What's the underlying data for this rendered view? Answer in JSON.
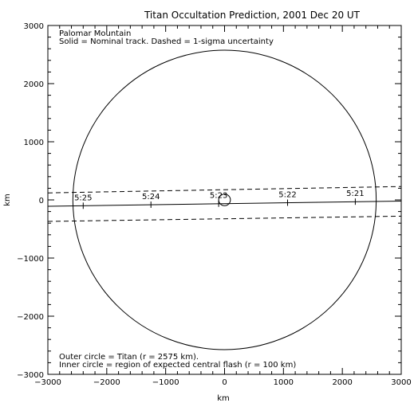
{
  "chart_data": {
    "type": "line",
    "title": "Titan Occultation Prediction, 2001 Dec 20 UT",
    "annotations_top": [
      "Palomar Mountain",
      "Solid = Nominal track.  Dashed = 1-sigma uncertainty"
    ],
    "annotations_bottom": [
      "Outer circle = Titan (r = 2575 km).",
      "Inner circle = region of expected central flash (r = 100 km)"
    ],
    "xlabel": "km",
    "ylabel": "km",
    "xlim": [
      -3000,
      3000
    ],
    "ylim": [
      -3000,
      3000
    ],
    "xticks": [
      -3000,
      -2000,
      -1000,
      0,
      1000,
      2000,
      3000
    ],
    "yticks": [
      -3000,
      -2000,
      -1000,
      0,
      1000,
      2000,
      3000
    ],
    "xtick_labels": [
      "−3000",
      "−2000",
      "−1000",
      "0",
      "1000",
      "2000",
      "3000"
    ],
    "ytick_labels": [
      "−3000",
      "−2000",
      "−1000",
      "0",
      "1000",
      "2000",
      "3000"
    ],
    "circles": [
      {
        "name": "Titan",
        "cx": 0,
        "cy": 0,
        "r": 2575
      },
      {
        "name": "central-flash",
        "cx": 0,
        "cy": 0,
        "r": 100
      }
    ],
    "series": [
      {
        "style": "solid",
        "x": [
          -3000,
          3000
        ],
        "y": [
          -110,
          -20
        ]
      },
      {
        "style": "dashed",
        "x": [
          -3000,
          3000
        ],
        "y": [
          120,
          230
        ]
      },
      {
        "style": "dashed",
        "x": [
          -3000,
          3000
        ],
        "y": [
          -370,
          -280
        ]
      }
    ],
    "time_marks": [
      {
        "label": "5:25",
        "x": -2400,
        "y": -100
      },
      {
        "label": "5:24",
        "x": -1250,
        "y": -82
      },
      {
        "label": "5:23",
        "x": -100,
        "y": -65
      },
      {
        "label": "5:22",
        "x": 1070,
        "y": -48
      },
      {
        "label": "5:21",
        "x": 2220,
        "y": -30
      }
    ]
  }
}
